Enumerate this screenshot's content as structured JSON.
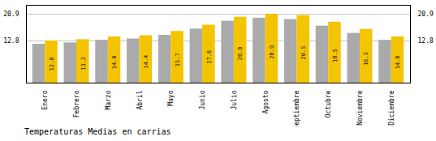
{
  "chart_data": {
    "type": "bar",
    "title": "Temperaturas Medias en carrias",
    "categories": [
      "Enero",
      "Febrero",
      "Marzo",
      "Abril",
      "Mayo",
      "Junio",
      "Julio",
      "Agosto",
      "Septiembre",
      "Octubre",
      "Noviembre",
      "Diciembre"
    ],
    "series": [
      {
        "color": "#AAAAAA",
        "values": [
          11.8,
          12.2,
          13.0,
          13.4,
          14.5,
          16.4,
          18.8,
          19.7,
          19.3,
          17.3,
          15.1,
          13.0
        ]
      },
      {
        "color": "#F5C400",
        "values": [
          12.8,
          13.2,
          14.0,
          14.4,
          15.7,
          17.6,
          20.0,
          20.9,
          20.5,
          18.5,
          16.3,
          14.0
        ],
        "data_labels": true,
        "value_labels": [
          "12.8",
          "13.2",
          "14.0",
          "14.4",
          "15.7",
          "17.6",
          "20.0",
          "20.9",
          "20.5",
          "18.5",
          "16.3",
          "14.0"
        ]
      }
    ],
    "ylim": [
      0,
      23.617
    ],
    "yticks": [
      12.8,
      20.9
    ],
    "grid": true
  }
}
